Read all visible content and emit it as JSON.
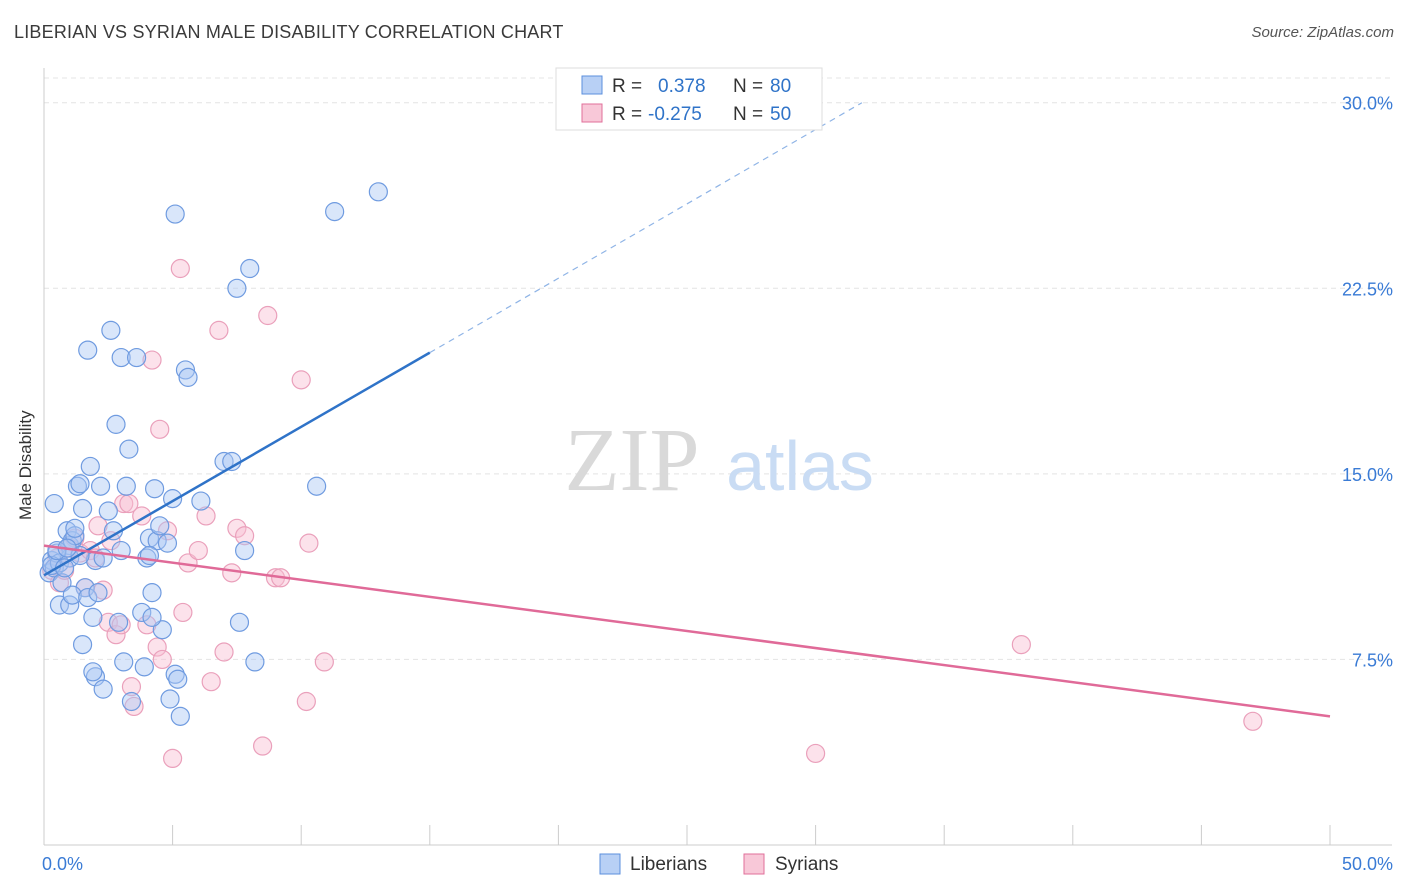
{
  "title": "LIBERIAN VS SYRIAN MALE DISABILITY CORRELATION CHART",
  "source": "Source: ZipAtlas.com",
  "watermark": {
    "zip": "ZIP",
    "atlas": "atlas"
  },
  "legend_box": {
    "rows": [
      {
        "r_label": "R =",
        "r_value": "0.378",
        "n_label": "N =",
        "n_value": "80",
        "color": "#5b8fdd",
        "fill": "#b8d0f5"
      },
      {
        "r_label": "R =",
        "r_value": "-0.275",
        "n_label": "N =",
        "n_value": "50",
        "color": "#e06f9a",
        "fill": "#f8c8d8"
      }
    ]
  },
  "bottom_legend": [
    {
      "label": "Liberians",
      "fill": "#b8d0f5",
      "stroke": "#5b8fdd"
    },
    {
      "label": "Syrians",
      "fill": "#f8c8d8",
      "stroke": "#e06f9a"
    }
  ],
  "chart_data": {
    "type": "scatter",
    "title": "LIBERIAN VS SYRIAN MALE DISABILITY CORRELATION CHART",
    "xlabel": "",
    "ylabel": "Male Disability",
    "xlim": [
      0,
      50
    ],
    "ylim": [
      0,
      31
    ],
    "x_tick_labels": [
      "0.0%",
      "50.0%"
    ],
    "y_ticks": [
      7.5,
      15.0,
      22.5,
      30.0
    ],
    "y_tick_labels": [
      "7.5%",
      "15.0%",
      "22.5%",
      "30.0%"
    ],
    "grid": true,
    "colors": {
      "liberians": "#2f73c8",
      "syrians": "#e06a98",
      "tick_label": "#3a7bd5"
    },
    "series": [
      {
        "name": "Liberians",
        "trend": {
          "x": [
            0.0,
            15.0
          ],
          "y": [
            10.9,
            19.9
          ],
          "dashed_to": [
            31.8,
            30.0
          ]
        },
        "points": [
          [
            0.2,
            11.0
          ],
          [
            0.3,
            11.5
          ],
          [
            0.4,
            11.2
          ],
          [
            0.5,
            11.8
          ],
          [
            0.6,
            11.4
          ],
          [
            0.3,
            11.3
          ],
          [
            0.7,
            10.6
          ],
          [
            0.4,
            13.8
          ],
          [
            0.9,
            12.7
          ],
          [
            1.0,
            12.1
          ],
          [
            1.1,
            12.3
          ],
          [
            1.2,
            12.5
          ],
          [
            1.2,
            12.8
          ],
          [
            1.3,
            14.5
          ],
          [
            1.4,
            14.6
          ],
          [
            1.5,
            13.6
          ],
          [
            1.6,
            10.4
          ],
          [
            0.6,
            9.7
          ],
          [
            1.0,
            9.7
          ],
          [
            1.1,
            10.1
          ],
          [
            1.7,
            10.0
          ],
          [
            1.8,
            15.3
          ],
          [
            1.9,
            9.2
          ],
          [
            2.0,
            11.5
          ],
          [
            2.2,
            14.5
          ],
          [
            2.3,
            11.6
          ],
          [
            2.5,
            13.5
          ],
          [
            2.7,
            12.7
          ],
          [
            2.8,
            17.0
          ],
          [
            2.9,
            9.0
          ],
          [
            1.5,
            8.1
          ],
          [
            2.0,
            6.8
          ],
          [
            2.3,
            6.3
          ],
          [
            3.0,
            11.9
          ],
          [
            3.2,
            14.5
          ],
          [
            3.3,
            16.0
          ],
          [
            2.6,
            20.8
          ],
          [
            1.7,
            20.0
          ],
          [
            3.0,
            19.7
          ],
          [
            3.6,
            19.7
          ],
          [
            3.8,
            9.4
          ],
          [
            3.9,
            7.2
          ],
          [
            4.0,
            11.6
          ],
          [
            4.1,
            12.4
          ],
          [
            4.2,
            10.2
          ],
          [
            4.3,
            14.4
          ],
          [
            4.4,
            12.3
          ],
          [
            4.5,
            12.9
          ],
          [
            4.6,
            8.7
          ],
          [
            4.8,
            12.2
          ],
          [
            4.9,
            5.9
          ],
          [
            5.0,
            14.0
          ],
          [
            5.1,
            6.9
          ],
          [
            5.2,
            6.7
          ],
          [
            5.3,
            5.2
          ],
          [
            5.5,
            19.2
          ],
          [
            5.6,
            18.9
          ],
          [
            6.1,
            13.9
          ],
          [
            7.0,
            15.5
          ],
          [
            7.3,
            15.5
          ],
          [
            7.6,
            9.0
          ],
          [
            7.8,
            11.9
          ],
          [
            8.0,
            23.3
          ],
          [
            8.2,
            7.4
          ],
          [
            4.2,
            9.2
          ],
          [
            3.4,
            5.8
          ],
          [
            5.1,
            25.5
          ],
          [
            7.5,
            22.5
          ],
          [
            11.3,
            25.6
          ],
          [
            13.0,
            26.4
          ],
          [
            10.6,
            14.5
          ],
          [
            3.1,
            7.4
          ],
          [
            1.9,
            7.0
          ],
          [
            1.0,
            11.6
          ],
          [
            0.5,
            11.9
          ],
          [
            1.4,
            11.7
          ],
          [
            0.8,
            11.2
          ],
          [
            2.1,
            10.2
          ],
          [
            0.9,
            12.0
          ],
          [
            4.1,
            11.7
          ]
        ]
      },
      {
        "name": "Syrians",
        "trend": {
          "x": [
            0.0,
            50.0
          ],
          "y": [
            12.1,
            5.2
          ]
        },
        "points": [
          [
            0.3,
            11.1
          ],
          [
            0.5,
            11.6
          ],
          [
            0.6,
            10.6
          ],
          [
            0.8,
            11.1
          ],
          [
            1.0,
            12.0
          ],
          [
            1.2,
            12.4
          ],
          [
            1.4,
            11.8
          ],
          [
            1.6,
            10.4
          ],
          [
            1.8,
            11.9
          ],
          [
            2.0,
            11.6
          ],
          [
            2.1,
            12.9
          ],
          [
            2.3,
            10.3
          ],
          [
            2.5,
            9.0
          ],
          [
            2.6,
            12.3
          ],
          [
            2.8,
            8.5
          ],
          [
            3.0,
            8.9
          ],
          [
            3.1,
            13.8
          ],
          [
            3.3,
            13.8
          ],
          [
            3.4,
            6.4
          ],
          [
            3.5,
            5.6
          ],
          [
            3.8,
            13.3
          ],
          [
            4.0,
            8.9
          ],
          [
            4.2,
            19.6
          ],
          [
            4.4,
            8.0
          ],
          [
            4.5,
            16.8
          ],
          [
            4.6,
            7.5
          ],
          [
            4.8,
            12.7
          ],
          [
            5.0,
            3.5
          ],
          [
            5.3,
            23.3
          ],
          [
            5.4,
            9.4
          ],
          [
            5.6,
            11.4
          ],
          [
            6.0,
            11.9
          ],
          [
            6.3,
            13.3
          ],
          [
            6.5,
            6.6
          ],
          [
            6.8,
            20.8
          ],
          [
            7.0,
            7.8
          ],
          [
            7.3,
            11.0
          ],
          [
            7.5,
            12.8
          ],
          [
            7.8,
            12.5
          ],
          [
            8.5,
            4.0
          ],
          [
            8.7,
            21.4
          ],
          [
            9.0,
            10.8
          ],
          [
            9.2,
            10.8
          ],
          [
            10.3,
            12.2
          ],
          [
            10.9,
            7.4
          ],
          [
            10.0,
            18.8
          ],
          [
            10.2,
            5.8
          ],
          [
            30.0,
            3.7
          ],
          [
            38.0,
            8.1
          ],
          [
            47.0,
            5.0
          ]
        ]
      }
    ]
  }
}
